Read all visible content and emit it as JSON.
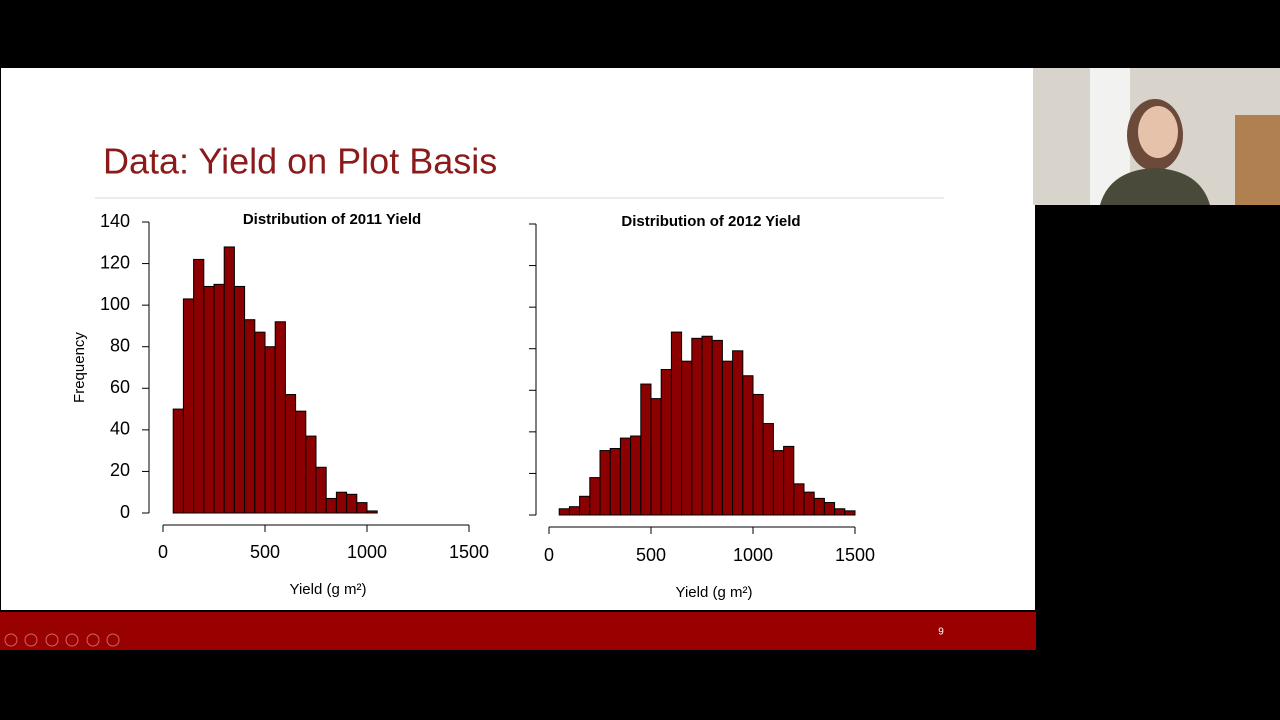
{
  "slide": {
    "title": "Data: Yield on Plot Basis",
    "page_number": "9"
  },
  "chart_data": [
    {
      "type": "histogram",
      "title": "Distribution of 2011 Yield",
      "xlabel": "Yield (g m²)",
      "ylabel": "Frequency",
      "bins": [
        50,
        100,
        150,
        200,
        250,
        300,
        350,
        400,
        450,
        500,
        550,
        600,
        650,
        700,
        750,
        800,
        850,
        900,
        950,
        1000,
        1050
      ],
      "values": [
        50,
        103,
        122,
        109,
        110,
        128,
        109,
        93,
        87,
        80,
        92,
        57,
        49,
        37,
        22,
        7,
        10,
        9,
        5,
        1
      ],
      "color": "#8b0000",
      "xlim": [
        0,
        1500
      ],
      "xticks": [
        0,
        500,
        1000,
        1500
      ],
      "ylim": [
        0,
        140
      ],
      "yticks": [
        0,
        20,
        40,
        60,
        80,
        100,
        120,
        140
      ],
      "ytick_labels": true
    },
    {
      "type": "histogram",
      "title": "Distribution of 2012 Yield",
      "xlabel": "Yield (g m²)",
      "bins": [
        50,
        100,
        150,
        200,
        250,
        300,
        350,
        400,
        450,
        500,
        550,
        600,
        650,
        700,
        750,
        800,
        850,
        900,
        950,
        1000,
        1050,
        1100,
        1150,
        1200,
        1250,
        1300,
        1350,
        1400,
        1450,
        1500
      ],
      "values": [
        3,
        4,
        9,
        18,
        31,
        32,
        37,
        38,
        63,
        56,
        70,
        88,
        74,
        85,
        86,
        84,
        74,
        79,
        67,
        58,
        44,
        31,
        33,
        15,
        11,
        8,
        6,
        3,
        2
      ],
      "color": "#8b0000",
      "xlim": [
        0,
        1500
      ],
      "xticks": [
        0,
        500,
        1000,
        1500
      ],
      "ylim": [
        0,
        140
      ],
      "yticks": [
        0,
        20,
        40,
        60,
        80,
        100,
        120,
        140
      ],
      "ytick_labels": false
    }
  ]
}
